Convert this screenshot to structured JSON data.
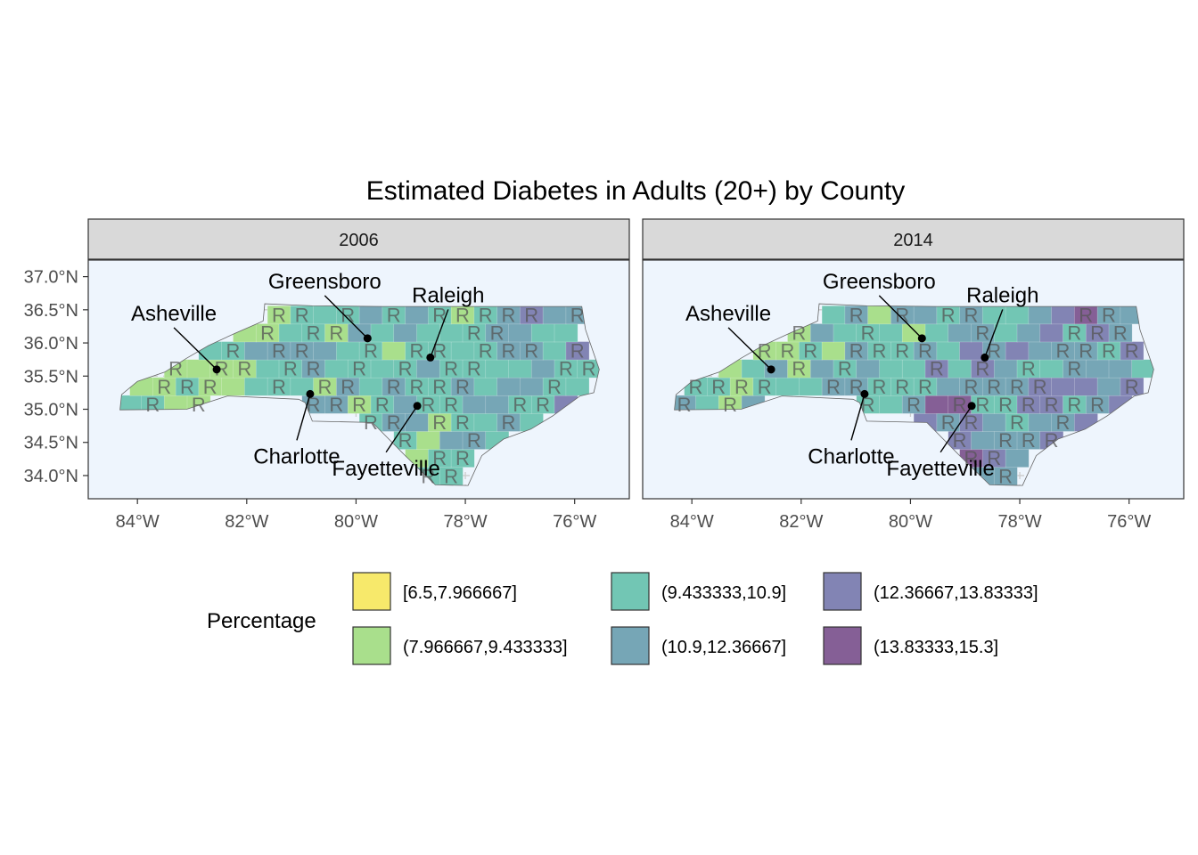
{
  "chart_data": {
    "type": "choropleth",
    "title": "Estimated Diabetes in Adults (20+) by County",
    "panels": [
      {
        "label": "2006",
        "cities": [
          {
            "name": "Asheville",
            "lon": -82.55,
            "lat": 35.6
          },
          {
            "name": "Greensboro",
            "lon": -79.79,
            "lat": 36.07
          },
          {
            "name": "Raleigh",
            "lon": -78.64,
            "lat": 35.78
          },
          {
            "name": "Charlotte",
            "lon": -80.84,
            "lat": 35.23
          },
          {
            "name": "Fayetteville",
            "lon": -78.88,
            "lat": 35.05
          }
        ]
      },
      {
        "label": "2014",
        "cities": [
          {
            "name": "Asheville",
            "lon": -82.55,
            "lat": 35.6
          },
          {
            "name": "Greensboro",
            "lon": -79.79,
            "lat": 36.07
          },
          {
            "name": "Raleigh",
            "lon": -78.64,
            "lat": 35.78
          },
          {
            "name": "Charlotte",
            "lon": -80.84,
            "lat": 35.23
          },
          {
            "name": "Fayetteville",
            "lon": -78.88,
            "lat": 35.05
          }
        ]
      }
    ],
    "x_ticks": [
      "84°W",
      "82°W",
      "80°W",
      "78°W",
      "76°W"
    ],
    "x_tick_values": [
      -84,
      -82,
      -80,
      -78,
      -76
    ],
    "y_ticks": [
      "34.0°N",
      "34.5°N",
      "35.0°N",
      "35.5°N",
      "36.0°N",
      "36.5°N",
      "37.0°N"
    ],
    "y_tick_values": [
      34.0,
      34.5,
      35.0,
      35.5,
      36.0,
      36.5,
      37.0
    ],
    "xlim": [
      -84.9,
      -75.0
    ],
    "ylim": [
      33.65,
      37.25
    ],
    "marker_glyph": "R",
    "legend": {
      "title": "Percentage",
      "position": "bottom",
      "entries": [
        {
          "label": "[6.5,7.966667]",
          "color": "#f7e96b"
        },
        {
          "label": "(7.966667,9.433333]",
          "color": "#a9df8c"
        },
        {
          "label": "(9.433333,10.9]",
          "color": "#72c6b4"
        },
        {
          "label": "(10.9,12.36667]",
          "color": "#76a6b6"
        },
        {
          "label": "(12.36667,13.83333]",
          "color": "#8284b4"
        },
        {
          "label": "(13.83333,15.3]",
          "color": "#855f96"
        }
      ]
    },
    "grid": true,
    "panel_background": "#eef5fd",
    "strip_background": "#d9d9d9"
  }
}
